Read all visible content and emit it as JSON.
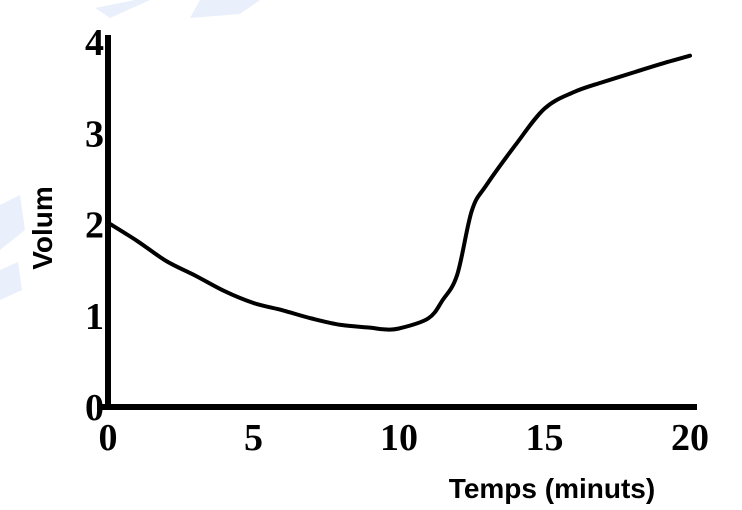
{
  "chart_data": {
    "type": "line",
    "xlabel": "Temps (minuts)",
    "ylabel": "Volum",
    "xlim": [
      0,
      20
    ],
    "ylim": [
      0,
      4
    ],
    "x_ticks": [
      "0",
      "5",
      "10",
      "15",
      "20"
    ],
    "y_ticks": [
      "0",
      "1",
      "2",
      "3",
      "4"
    ],
    "grid": false,
    "series": [
      {
        "x": [
          0,
          1,
          2,
          3,
          4,
          5,
          6,
          7,
          8,
          9,
          9.5,
          10,
          11,
          11.5,
          12,
          12.5,
          13,
          14,
          15,
          16,
          17,
          18,
          19,
          20
        ],
        "y": [
          2.02,
          1.82,
          1.6,
          1.44,
          1.27,
          1.14,
          1.06,
          0.97,
          0.9,
          0.87,
          0.85,
          0.86,
          0.97,
          1.17,
          1.45,
          2.15,
          2.43,
          2.87,
          3.27,
          3.45,
          3.56,
          3.66,
          3.76,
          3.85
        ],
        "color": "#000000"
      }
    ]
  }
}
